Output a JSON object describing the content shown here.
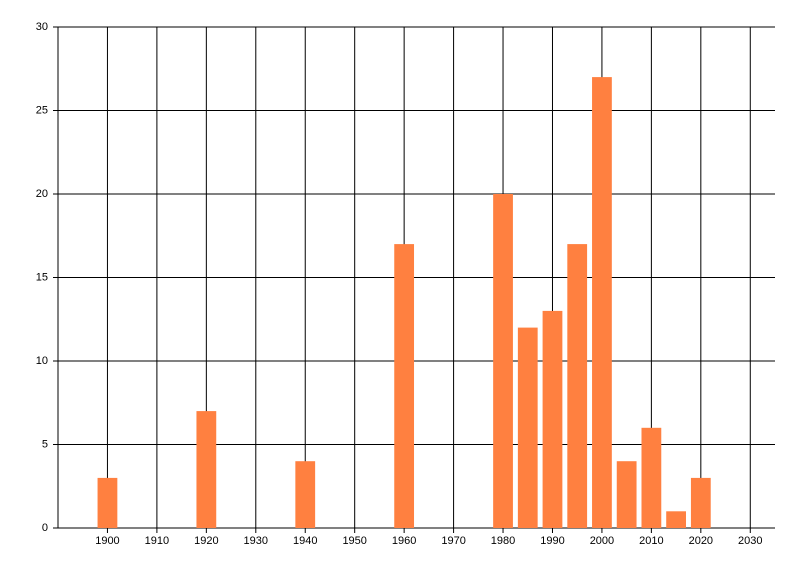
{
  "chart_data": {
    "type": "bar",
    "x": [
      1900,
      1920,
      1940,
      1960,
      1980,
      1985,
      1990,
      1995,
      2000,
      2005,
      2010,
      2015,
      2020
    ],
    "values": [
      3,
      7,
      4,
      17,
      20,
      12,
      13,
      17,
      27,
      4,
      6,
      1,
      3
    ],
    "color": "#ff8040",
    "xlim": [
      1890,
      2035
    ],
    "xticks": [
      1900,
      1910,
      1920,
      1930,
      1940,
      1950,
      1960,
      1970,
      1980,
      1990,
      2000,
      2010,
      2020,
      2030
    ],
    "ylim": [
      0,
      30
    ],
    "yticks": [
      0,
      5,
      10,
      15,
      20,
      25,
      30
    ],
    "grid": true
  }
}
